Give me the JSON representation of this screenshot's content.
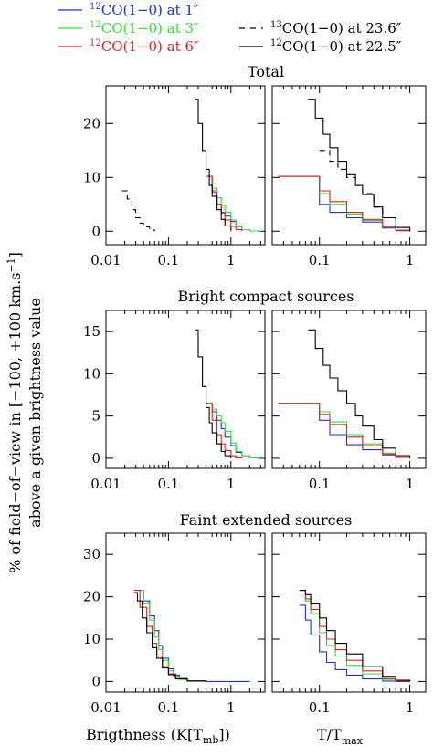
{
  "legend": [
    {
      "iso": "12",
      "rest": "CO(1−0) at 1″",
      "color": "#1f2fd6",
      "dash": false
    },
    {
      "iso": "12",
      "rest": "CO(1−0) at 3″",
      "color": "#33dd33",
      "dash": false
    },
    {
      "iso": "12",
      "rest": "CO(1−0) at 6″",
      "color": "#dd2222",
      "dash": false
    },
    {
      "iso": "13",
      "rest": "CO(1−0) at 23.6″",
      "color": "#000000",
      "dash": true
    },
    {
      "iso": "12",
      "rest": "CO(1−0) at 22.5″",
      "color": "#000000",
      "dash": false
    }
  ],
  "ylabel_line1": "% of field−of−view in [−100, +100 km.s",
  "ylabel_sup": "−1",
  "ylabel_line1_end": "]",
  "ylabel_line2": "above a given brightness value",
  "xlabel_left_main": "Brigthness (K[T",
  "xlabel_left_sub": "mb",
  "xlabel_left_end": "])",
  "xlabel_right_main": "T/T",
  "xlabel_right_sub": "max",
  "chart_data": [
    {
      "type": "line",
      "title": "Total",
      "xscale": "log",
      "xlim_left": [
        0.01,
        3.5
      ],
      "xlim_right": [
        0.03,
        1.5
      ],
      "ylim": [
        -2.5,
        27
      ],
      "yticks": [
        0,
        10,
        20
      ],
      "xticks_left": [
        0.01,
        0.1,
        1
      ],
      "xticks_right": [
        0.1,
        1
      ],
      "left_series": [
        {
          "name": "12CO(1-0) at 1″",
          "color": "#1f2fd6",
          "dash": false,
          "x": [
            0.4,
            0.5,
            0.6,
            0.7,
            0.8,
            1.0,
            1.2,
            1.5,
            2.0,
            3.0
          ],
          "y": [
            10.2,
            7.5,
            5.0,
            3.5,
            2.8,
            1.8,
            0.9,
            0.3,
            0.05,
            0.0
          ]
        },
        {
          "name": "12CO(1-0) at 3″",
          "color": "#33dd33",
          "dash": false,
          "x": [
            0.4,
            0.5,
            0.6,
            0.7,
            0.8,
            1.0,
            1.2,
            1.5,
            2.0,
            3.0
          ],
          "y": [
            10.2,
            8.0,
            6.2,
            4.8,
            3.5,
            2.1,
            1.0,
            0.3,
            0.05,
            0.0
          ]
        },
        {
          "name": "12CO(1-0) at 6″",
          "color": "#dd2222",
          "dash": false,
          "x": [
            0.4,
            0.5,
            0.6,
            0.7,
            0.8,
            1.0,
            1.2,
            1.5
          ],
          "y": [
            10.2,
            7.2,
            5.0,
            3.4,
            2.1,
            0.9,
            0.3,
            0.0
          ]
        },
        {
          "name": "13CO(1-0) at 23.6″",
          "color": "#000000",
          "dash": true,
          "x": [
            0.018,
            0.022,
            0.026,
            0.03,
            0.035,
            0.04,
            0.05,
            0.06
          ],
          "y": [
            7.5,
            6.0,
            4.0,
            2.5,
            1.5,
            0.8,
            0.2,
            0.0
          ]
        },
        {
          "name": "12CO(1-0) at 22.5″",
          "color": "#000000",
          "dash": false,
          "x": [
            0.27,
            0.3,
            0.35,
            0.4,
            0.45,
            0.5,
            0.6,
            0.7,
            0.8,
            1.0
          ],
          "y": [
            24.5,
            20.0,
            15.0,
            11.5,
            8.5,
            6.5,
            4.0,
            2.2,
            1.0,
            0.0
          ]
        }
      ],
      "right_series": [
        {
          "name": "12CO(1-0) at 1″",
          "color": "#1f2fd6",
          "dash": false,
          "x": [
            0.035,
            0.08,
            0.1,
            0.13,
            0.2,
            0.3,
            0.5,
            0.7,
            1.0
          ],
          "y": [
            10.2,
            10.2,
            5.0,
            3.5,
            2.5,
            1.7,
            0.6,
            0.1,
            0.0
          ]
        },
        {
          "name": "12CO(1-0) at 3″",
          "color": "#33dd33",
          "dash": false,
          "x": [
            0.035,
            0.08,
            0.1,
            0.13,
            0.2,
            0.3,
            0.5,
            0.7,
            1.0
          ],
          "y": [
            10.2,
            10.2,
            7.0,
            5.0,
            3.2,
            2.0,
            0.8,
            0.2,
            0.0
          ]
        },
        {
          "name": "12CO(1-0) at 6″",
          "color": "#dd2222",
          "dash": false,
          "x": [
            0.035,
            0.08,
            0.1,
            0.13,
            0.2,
            0.3,
            0.5,
            0.7,
            1.0
          ],
          "y": [
            10.2,
            10.2,
            7.5,
            5.5,
            3.5,
            2.2,
            0.9,
            0.2,
            0.0
          ]
        },
        {
          "name": "13CO(1-0) at 23.6″",
          "color": "#000000",
          "dash": true,
          "x": [
            0.1,
            0.13,
            0.16,
            0.2,
            0.25,
            0.3,
            0.4,
            0.5,
            0.7,
            1.0
          ],
          "y": [
            15.0,
            13.0,
            11.5,
            10.0,
            8.5,
            7.0,
            4.5,
            2.5,
            0.7,
            0.0
          ]
        },
        {
          "name": "12CO(1-0) at 22.5″",
          "color": "#000000",
          "dash": false,
          "x": [
            0.075,
            0.09,
            0.11,
            0.13,
            0.16,
            0.2,
            0.25,
            0.3,
            0.4,
            0.5,
            0.7,
            1.0
          ],
          "y": [
            24.5,
            21.0,
            18.0,
            15.5,
            13.0,
            10.5,
            8.5,
            6.8,
            4.5,
            2.5,
            0.7,
            0.0
          ]
        }
      ]
    },
    {
      "type": "line",
      "title": "Bright compact sources",
      "xscale": "log",
      "xlim_left": [
        0.01,
        3.5
      ],
      "xlim_right": [
        0.03,
        1.5
      ],
      "ylim": [
        -1.2,
        17.5
      ],
      "yticks": [
        0,
        5,
        10,
        15
      ],
      "xticks_left": [
        0.01,
        0.1,
        1
      ],
      "xticks_right": [
        0.1,
        1
      ],
      "left_series": [
        {
          "name": "12CO(1-0) at 1″",
          "color": "#1f2fd6",
          "dash": false,
          "x": [
            0.4,
            0.5,
            0.6,
            0.7,
            0.8,
            1.0,
            1.2,
            1.5,
            2.0,
            3.0
          ],
          "y": [
            6.5,
            5.5,
            4.5,
            3.5,
            2.5,
            1.5,
            0.7,
            0.3,
            0.05,
            0.0
          ]
        },
        {
          "name": "12CO(1-0) at 3″",
          "color": "#33dd33",
          "dash": false,
          "x": [
            0.4,
            0.5,
            0.6,
            0.7,
            0.8,
            1.0,
            1.2,
            1.5,
            2.0,
            3.0
          ],
          "y": [
            6.5,
            5.8,
            5.0,
            4.2,
            3.2,
            1.8,
            0.8,
            0.3,
            0.05,
            0.0
          ]
        },
        {
          "name": "12CO(1-0) at 6″",
          "color": "#dd2222",
          "dash": false,
          "x": [
            0.4,
            0.5,
            0.6,
            0.7,
            0.8,
            1.0,
            1.2,
            1.5
          ],
          "y": [
            6.5,
            4.5,
            2.8,
            1.7,
            0.9,
            0.3,
            0.05,
            0.0
          ]
        },
        {
          "name": "12CO(1-0) at 22.5″",
          "color": "#000000",
          "dash": false,
          "x": [
            0.27,
            0.3,
            0.35,
            0.4,
            0.45,
            0.5,
            0.6,
            0.7,
            0.8,
            1.0
          ],
          "y": [
            15.2,
            12.0,
            8.5,
            6.0,
            4.2,
            3.0,
            1.7,
            0.8,
            0.3,
            0.0
          ]
        }
      ],
      "right_series": [
        {
          "name": "12CO(1-0) at 1″",
          "color": "#1f2fd6",
          "dash": false,
          "x": [
            0.035,
            0.08,
            0.1,
            0.13,
            0.2,
            0.3,
            0.5,
            0.7,
            1.0
          ],
          "y": [
            6.5,
            6.5,
            4.5,
            2.8,
            1.6,
            1.0,
            0.4,
            0.1,
            0.0
          ]
        },
        {
          "name": "12CO(1-0) at 3″",
          "color": "#33dd33",
          "dash": false,
          "x": [
            0.035,
            0.08,
            0.1,
            0.13,
            0.2,
            0.3,
            0.5,
            0.7,
            1.0
          ],
          "y": [
            6.5,
            6.5,
            5.5,
            4.3,
            2.8,
            1.7,
            0.6,
            0.1,
            0.0
          ]
        },
        {
          "name": "12CO(1-0) at 6″",
          "color": "#dd2222",
          "dash": false,
          "x": [
            0.035,
            0.08,
            0.1,
            0.13,
            0.2,
            0.3,
            0.5,
            0.7,
            1.0
          ],
          "y": [
            6.5,
            6.5,
            5.2,
            4.0,
            2.5,
            1.5,
            0.5,
            0.1,
            0.0
          ]
        },
        {
          "name": "12CO(1-0) at 22.5″",
          "color": "#000000",
          "dash": false,
          "x": [
            0.075,
            0.09,
            0.11,
            0.13,
            0.16,
            0.2,
            0.25,
            0.3,
            0.4,
            0.5,
            0.7,
            1.0
          ],
          "y": [
            15.2,
            13.0,
            11.0,
            9.5,
            8.0,
            6.5,
            5.0,
            3.8,
            2.2,
            1.2,
            0.3,
            0.0
          ]
        }
      ]
    },
    {
      "type": "line",
      "title": "Faint extended sources",
      "xscale": "log",
      "xlim_left": [
        0.01,
        3.5
      ],
      "xlim_right": [
        0.03,
        1.5
      ],
      "ylim": [
        -2.5,
        35
      ],
      "yticks": [
        0,
        10,
        20,
        30
      ],
      "xticks_left": [
        0.01,
        0.1,
        1
      ],
      "xticks_right": [
        0.1,
        1
      ],
      "left_series": [
        {
          "name": "12CO(1-0) at 1″",
          "color": "#1f2fd6",
          "dash": false,
          "x": [
            0.032,
            0.04,
            0.05,
            0.06,
            0.07,
            0.08,
            0.1,
            0.12,
            0.15,
            0.2,
            0.4,
            2.0
          ],
          "y": [
            21.5,
            19.0,
            15.5,
            12.0,
            8.5,
            5.5,
            3.0,
            1.5,
            0.7,
            0.2,
            0.0,
            0.0
          ]
        },
        {
          "name": "12CO(1-0) at 3″",
          "color": "#33dd33",
          "dash": false,
          "x": [
            0.032,
            0.04,
            0.05,
            0.06,
            0.07,
            0.08,
            0.1,
            0.12,
            0.15,
            0.2,
            0.4
          ],
          "y": [
            21.5,
            18.5,
            14.5,
            10.5,
            7.5,
            5.0,
            2.5,
            1.2,
            0.5,
            0.1,
            0.0
          ]
        },
        {
          "name": "12CO(1-0) at 6″",
          "color": "#dd2222",
          "dash": false,
          "x": [
            0.028,
            0.035,
            0.045,
            0.055,
            0.065,
            0.08,
            0.1,
            0.13,
            0.2,
            0.4
          ],
          "y": [
            21.5,
            17.5,
            13.0,
            9.0,
            6.0,
            3.5,
            1.8,
            0.7,
            0.1,
            0.0
          ]
        },
        {
          "name": "12CO(1-0) at 22.5″",
          "color": "#000000",
          "dash": false,
          "x": [
            0.028,
            0.032,
            0.038,
            0.045,
            0.055,
            0.065,
            0.08,
            0.1,
            0.13,
            0.2,
            0.4
          ],
          "y": [
            21.0,
            19.0,
            15.0,
            11.5,
            8.0,
            5.5,
            3.2,
            1.6,
            0.6,
            0.1,
            0.0
          ]
        }
      ],
      "right_series": [
        {
          "name": "12CO(1-0) at 1″",
          "color": "#1f2fd6",
          "dash": false,
          "x": [
            0.06,
            0.07,
            0.08,
            0.1,
            0.12,
            0.15,
            0.2,
            0.3,
            0.5,
            0.7,
            1.0
          ],
          "y": [
            18.0,
            14.5,
            11.0,
            7.0,
            4.5,
            2.8,
            1.5,
            0.6,
            0.1,
            0.0,
            0.0
          ]
        },
        {
          "name": "12CO(1-0) at 3″",
          "color": "#33dd33",
          "dash": false,
          "x": [
            0.06,
            0.07,
            0.08,
            0.1,
            0.12,
            0.15,
            0.2,
            0.3,
            0.5,
            0.7,
            1.0
          ],
          "y": [
            21.5,
            19.0,
            16.0,
            11.5,
            8.5,
            6.0,
            3.8,
            1.8,
            0.5,
            0.1,
            0.0
          ]
        },
        {
          "name": "12CO(1-0) at 6″",
          "color": "#dd2222",
          "dash": false,
          "x": [
            0.06,
            0.07,
            0.08,
            0.1,
            0.12,
            0.15,
            0.2,
            0.3,
            0.5,
            0.7,
            1.0
          ],
          "y": [
            21.5,
            19.5,
            17.0,
            13.0,
            10.0,
            7.5,
            5.0,
            2.5,
            0.7,
            0.1,
            0.0
          ]
        },
        {
          "name": "12CO(1-0) at 22.5″",
          "color": "#000000",
          "dash": false,
          "x": [
            0.06,
            0.07,
            0.08,
            0.1,
            0.12,
            0.15,
            0.2,
            0.3,
            0.5,
            0.7,
            1.0
          ],
          "y": [
            21.5,
            20.5,
            18.5,
            15.0,
            12.0,
            9.0,
            6.5,
            3.5,
            1.2,
            0.3,
            0.0
          ]
        }
      ]
    }
  ]
}
